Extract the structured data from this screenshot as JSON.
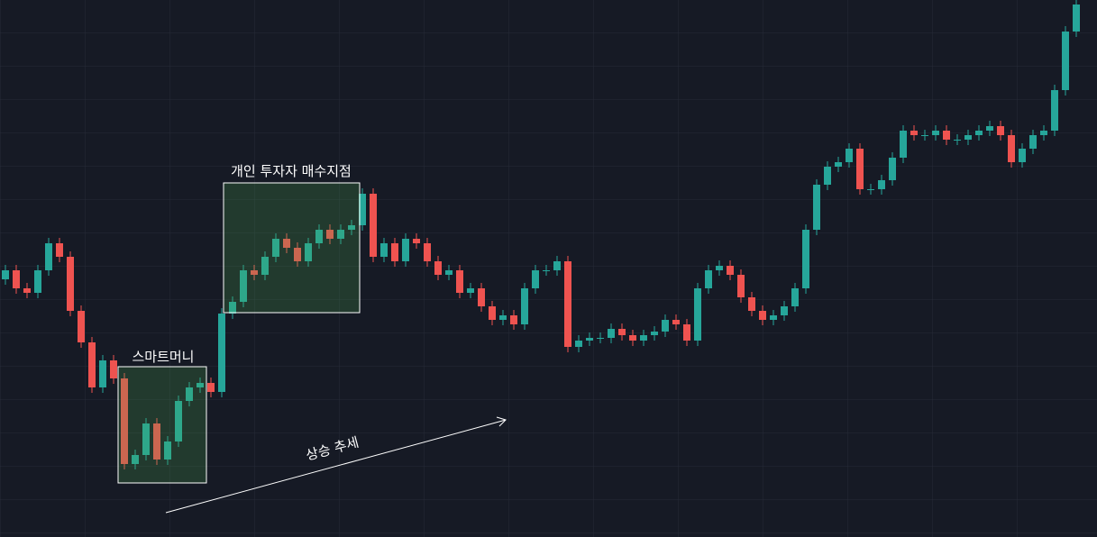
{
  "chart_data": {
    "type": "candlestick",
    "annotations": [
      "스마트머니",
      "개인 투자자 매수지점",
      "상승 추세"
    ],
    "up_color": "#26a69a",
    "down_color": "#ef5350",
    "ylim": [
      0,
      596
    ],
    "open": [
      286,
      296,
      276,
      271,
      296,
      326,
      311,
      251,
      216,
      166,
      196,
      176,
      81,
      91,
      126,
      86,
      106,
      151,
      166,
      171,
      161,
      248,
      261,
      296,
      291,
      311,
      331,
      321,
      306,
      326,
      341,
      331,
      341,
      346,
      381,
      311,
      326,
      306,
      331,
      326,
      306,
      291,
      296,
      271,
      276,
      256,
      241,
      246,
      236,
      276,
      296,
      296,
      306,
      211,
      218,
      221,
      221,
      231,
      224,
      218,
      224,
      228,
      241,
      236,
      218,
      276,
      296,
      301,
      291,
      266,
      251,
      241,
      246,
      256,
      276,
      341,
      391,
      411,
      416,
      431,
      386,
      386,
      396,
      421,
      451,
      446,
      446,
      451,
      441,
      441,
      446,
      451,
      456,
      446,
      416,
      431,
      446,
      451,
      496,
      561
    ],
    "high": [
      302,
      302,
      282,
      302,
      332,
      332,
      317,
      257,
      222,
      202,
      202,
      182,
      97,
      132,
      132,
      112,
      157,
      172,
      177,
      177,
      254,
      267,
      302,
      302,
      317,
      337,
      337,
      327,
      332,
      347,
      347,
      347,
      352,
      387,
      387,
      332,
      332,
      337,
      337,
      332,
      312,
      302,
      302,
      282,
      282,
      262,
      252,
      252,
      282,
      302,
      302,
      312,
      312,
      224,
      227,
      227,
      237,
      237,
      230,
      230,
      234,
      247,
      247,
      242,
      282,
      302,
      307,
      307,
      297,
      272,
      257,
      252,
      262,
      282,
      347,
      397,
      417,
      422,
      437,
      437,
      392,
      402,
      427,
      457,
      457,
      452,
      457,
      457,
      447,
      452,
      457,
      462,
      462,
      452,
      437,
      452,
      457,
      502,
      567,
      597
    ],
    "low": [
      280,
      270,
      265,
      265,
      290,
      305,
      245,
      210,
      160,
      160,
      170,
      75,
      75,
      85,
      80,
      80,
      100,
      145,
      160,
      155,
      155,
      242,
      255,
      285,
      285,
      305,
      315,
      300,
      300,
      320,
      325,
      325,
      335,
      340,
      305,
      305,
      300,
      300,
      320,
      300,
      285,
      285,
      265,
      265,
      250,
      235,
      235,
      230,
      230,
      270,
      290,
      290,
      205,
      205,
      212,
      215,
      215,
      218,
      212,
      212,
      218,
      222,
      230,
      212,
      212,
      270,
      290,
      285,
      260,
      245,
      235,
      235,
      240,
      250,
      270,
      335,
      385,
      405,
      410,
      380,
      380,
      380,
      390,
      415,
      440,
      440,
      440,
      435,
      435,
      435,
      440,
      445,
      440,
      410,
      410,
      425,
      440,
      445,
      490,
      555
    ],
    "close": [
      296,
      276,
      271,
      296,
      326,
      311,
      251,
      216,
      166,
      196,
      176,
      81,
      91,
      126,
      86,
      106,
      151,
      166,
      171,
      161,
      248,
      261,
      296,
      291,
      311,
      331,
      321,
      306,
      326,
      341,
      331,
      341,
      346,
      381,
      311,
      326,
      306,
      331,
      326,
      306,
      291,
      296,
      271,
      276,
      256,
      241,
      246,
      236,
      276,
      296,
      296,
      306,
      211,
      218,
      221,
      221,
      231,
      224,
      218,
      224,
      228,
      241,
      236,
      218,
      276,
      296,
      301,
      291,
      266,
      251,
      241,
      246,
      256,
      276,
      341,
      391,
      411,
      416,
      431,
      386,
      386,
      396,
      421,
      451,
      446,
      446,
      451,
      441,
      441,
      446,
      451,
      456,
      446,
      416,
      431,
      446,
      451,
      496,
      561,
      591
    ]
  }
}
